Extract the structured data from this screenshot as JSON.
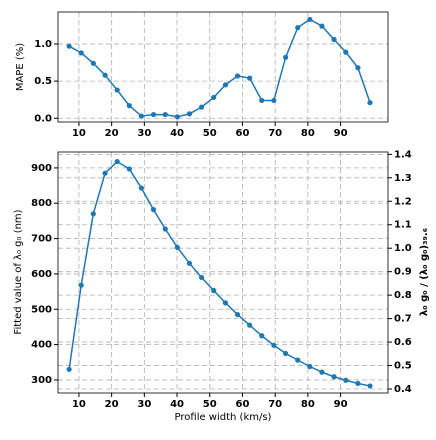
{
  "chart_data": [
    {
      "type": "line",
      "ylabel": "MAPE (%)",
      "x": [
        7,
        10.7,
        14.4,
        18,
        21.7,
        25.4,
        29.1,
        32.8,
        36.4,
        40.1,
        43.8,
        47.5,
        51.2,
        54.8,
        58.5,
        62.2,
        65.9,
        69.6,
        73.2,
        76.9,
        80.6,
        84.3,
        88,
        91.6,
        95.3,
        99
      ],
      "values": [
        0.97,
        0.88,
        0.74,
        0.58,
        0.38,
        0.17,
        0.03,
        0.05,
        0.05,
        0.02,
        0.06,
        0.15,
        0.28,
        0.45,
        0.57,
        0.54,
        0.24,
        0.24,
        0.82,
        1.22,
        1.33,
        1.24,
        1.06,
        0.89,
        0.68,
        0.21
      ],
      "color": "#1f77b4",
      "xlim": [
        3.6,
        104.5
      ],
      "xticks": [
        10,
        20,
        30,
        40,
        50,
        60,
        70,
        80,
        90
      ],
      "ylim": [
        -0.05,
        1.43
      ],
      "yticks": [
        {
          "value": 0,
          "label": "0.0"
        },
        0.5,
        {
          "value": 1,
          "label": "1.0"
        }
      ],
      "grid": true
    },
    {
      "type": "line",
      "xlabel": "Profile width (km/s)",
      "ylabel": "Fitted value of  λ₀ g₀ (nm)",
      "y2label": "λ₀ g₀ / (λ₀ g₀)₃₉.₆",
      "x": [
        7,
        10.7,
        14.4,
        18,
        21.7,
        25.4,
        29.1,
        32.8,
        36.4,
        40.1,
        43.8,
        47.5,
        51.2,
        54.8,
        58.5,
        62.2,
        65.9,
        69.6,
        73.2,
        76.9,
        80.6,
        84.3,
        88,
        91.6,
        95.3,
        99
      ],
      "values": [
        330,
        568,
        770,
        885,
        918,
        897,
        843,
        782,
        727,
        675,
        630,
        590,
        553,
        518,
        485,
        455,
        425,
        398,
        375,
        356,
        338,
        322,
        309,
        299,
        290,
        283
      ],
      "color": "#1f77b4",
      "xlim": [
        3.6,
        104.5
      ],
      "xticks": [
        10,
        20,
        30,
        40,
        50,
        60,
        70,
        80,
        90
      ],
      "ylim": [
        263,
        945
      ],
      "yticks": [
        300,
        400,
        500,
        600,
        700,
        800,
        900
      ],
      "y2lim": [
        0.383,
        1.41
      ],
      "y2ticks": [
        0.4,
        0.5,
        0.6,
        0.7,
        0.8,
        0.9,
        {
          "value": 1,
          "label": "1.0"
        },
        1.1,
        1.2,
        1.3,
        1.4
      ],
      "grid": true
    }
  ]
}
